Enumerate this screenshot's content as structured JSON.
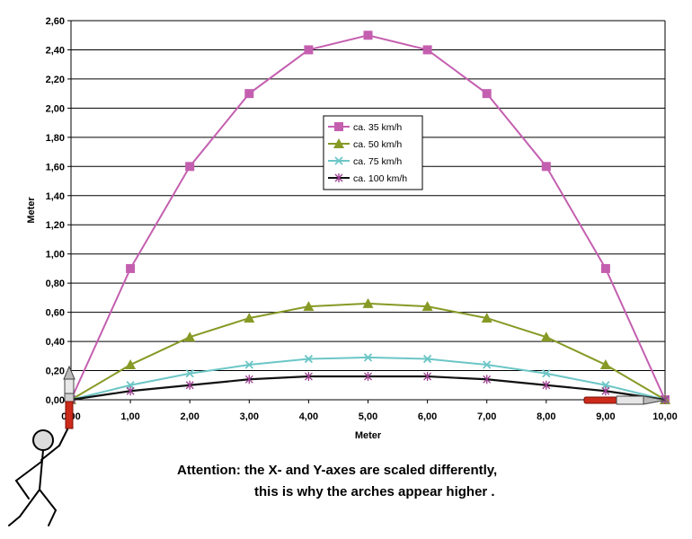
{
  "chart_data": {
    "type": "line",
    "xlabel": "Meter",
    "ylabel": "Meter",
    "xlim": [
      0,
      10
    ],
    "ylim": [
      0,
      2.6
    ],
    "x_ticks": [
      "0,00",
      "1,00",
      "2,00",
      "3,00",
      "4,00",
      "5,00",
      "6,00",
      "7,00",
      "8,00",
      "9,00",
      "10,00"
    ],
    "y_ticks": [
      "0,00",
      "0,20",
      "0,40",
      "0,60",
      "0,80",
      "1,00",
      "1,20",
      "1,40",
      "1,60",
      "1,80",
      "2,00",
      "2,20",
      "2,40",
      "2,60"
    ],
    "x": [
      0,
      1,
      2,
      3,
      4,
      5,
      6,
      7,
      8,
      9,
      10
    ],
    "grid": "horizontal",
    "legend_position": "center",
    "series": [
      {
        "name": "ca. 35 km/h",
        "color": "#c45fb0",
        "marker": "square",
        "values": [
          0,
          0.9,
          1.6,
          2.1,
          2.4,
          2.5,
          2.4,
          2.1,
          1.6,
          0.9,
          0
        ]
      },
      {
        "name": "ca. 50 km/h",
        "color": "#869a25",
        "marker": "triangle",
        "values": [
          0,
          0.24,
          0.43,
          0.56,
          0.64,
          0.66,
          0.64,
          0.56,
          0.43,
          0.24,
          0
        ]
      },
      {
        "name": "ca. 75 km/h",
        "color": "#6cc6c6",
        "marker": "x",
        "values": [
          0,
          0.1,
          0.18,
          0.24,
          0.28,
          0.29,
          0.28,
          0.24,
          0.18,
          0.1,
          0
        ]
      },
      {
        "name": "ca. 100 km/h",
        "color": "#111111",
        "marker": "star",
        "values": [
          0,
          0.06,
          0.1,
          0.14,
          0.16,
          0.16,
          0.16,
          0.14,
          0.1,
          0.06,
          0
        ]
      }
    ]
  },
  "note": {
    "line1": "Attention: the X- and Y-axes are scaled differently,",
    "line2": "this is why the arches appear higher ."
  }
}
